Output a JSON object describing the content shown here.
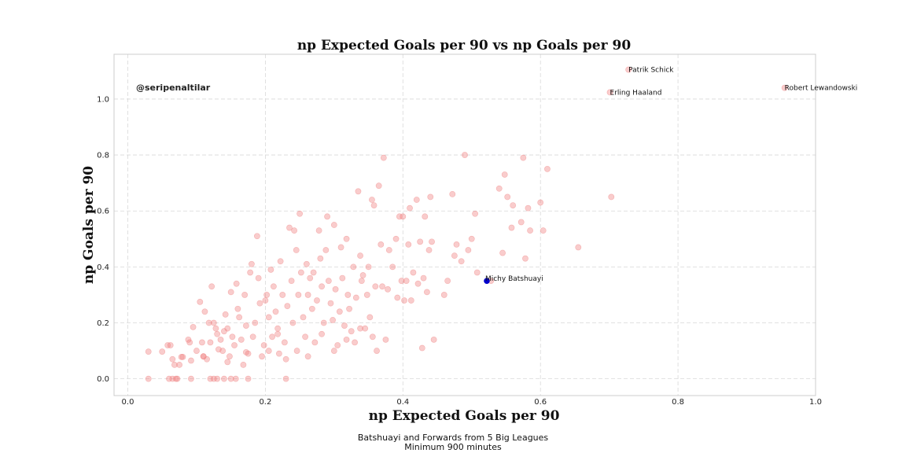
{
  "chart_data": {
    "type": "scatter",
    "title": "np Expected Goals per 90 vs np Goals per 90",
    "xlabel": "np Expected Goals per 90",
    "ylabel": "np Goals per 90",
    "xlim": [
      -0.02,
      1.0
    ],
    "ylim": [
      -0.06,
      1.16
    ],
    "xticks": [
      "0.0",
      "0.2",
      "0.4",
      "0.6",
      "0.8",
      "1.0"
    ],
    "yticks": [
      "0.0",
      "0.2",
      "0.4",
      "0.6",
      "0.8",
      "1.0"
    ],
    "grid": true,
    "watermark": "@seripenaltilar",
    "footer_lines": [
      "Batshuayi and Forwards from 5 Big Leagues",
      "Minimum 900 minutes"
    ],
    "colors": {
      "points": "#f08080",
      "highlight": "#0000cc"
    },
    "highlight": {
      "name": "Michy Batshuayi",
      "x": 0.522,
      "y": 0.35
    },
    "annotations": [
      {
        "name": "Patrik Schick",
        "x": 0.728,
        "y": 1.105
      },
      {
        "name": "Erling Haaland",
        "x": 0.701,
        "y": 1.024
      },
      {
        "name": "Robert Lewandowski",
        "x": 0.955,
        "y": 1.04
      }
    ],
    "points": [
      [
        0.03,
        0.0
      ],
      [
        0.06,
        0.0
      ],
      [
        0.065,
        0.0
      ],
      [
        0.07,
        0.0
      ],
      [
        0.072,
        0.0
      ],
      [
        0.092,
        0.0
      ],
      [
        0.12,
        0.0
      ],
      [
        0.125,
        0.0
      ],
      [
        0.13,
        0.0
      ],
      [
        0.14,
        0.0
      ],
      [
        0.15,
        0.0
      ],
      [
        0.157,
        0.0
      ],
      [
        0.175,
        0.0
      ],
      [
        0.23,
        0.0
      ],
      [
        0.03,
        0.097
      ],
      [
        0.05,
        0.097
      ],
      [
        0.058,
        0.12
      ],
      [
        0.062,
        0.12
      ],
      [
        0.065,
        0.07
      ],
      [
        0.068,
        0.05
      ],
      [
        0.075,
        0.05
      ],
      [
        0.078,
        0.078
      ],
      [
        0.08,
        0.078
      ],
      [
        0.088,
        0.14
      ],
      [
        0.09,
        0.13
      ],
      [
        0.092,
        0.065
      ],
      [
        0.095,
        0.185
      ],
      [
        0.1,
        0.1
      ],
      [
        0.105,
        0.275
      ],
      [
        0.108,
        0.13
      ],
      [
        0.11,
        0.08
      ],
      [
        0.112,
        0.24
      ],
      [
        0.115,
        0.07
      ],
      [
        0.118,
        0.2
      ],
      [
        0.12,
        0.13
      ],
      [
        0.122,
        0.33
      ],
      [
        0.125,
        0.2
      ],
      [
        0.128,
        0.18
      ],
      [
        0.13,
        0.16
      ],
      [
        0.132,
        0.105
      ],
      [
        0.135,
        0.14
      ],
      [
        0.138,
        0.1
      ],
      [
        0.14,
        0.17
      ],
      [
        0.142,
        0.23
      ],
      [
        0.145,
        0.18
      ],
      [
        0.148,
        0.08
      ],
      [
        0.15,
        0.31
      ],
      [
        0.152,
        0.15
      ],
      [
        0.155,
        0.12
      ],
      [
        0.158,
        0.34
      ],
      [
        0.16,
        0.25
      ],
      [
        0.162,
        0.22
      ],
      [
        0.165,
        0.14
      ],
      [
        0.168,
        0.05
      ],
      [
        0.17,
        0.3
      ],
      [
        0.172,
        0.19
      ],
      [
        0.175,
        0.09
      ],
      [
        0.178,
        0.38
      ],
      [
        0.18,
        0.41
      ],
      [
        0.182,
        0.15
      ],
      [
        0.185,
        0.2
      ],
      [
        0.188,
        0.51
      ],
      [
        0.19,
        0.36
      ],
      [
        0.192,
        0.27
      ],
      [
        0.195,
        0.08
      ],
      [
        0.198,
        0.12
      ],
      [
        0.2,
        0.28
      ],
      [
        0.202,
        0.3
      ],
      [
        0.205,
        0.22
      ],
      [
        0.208,
        0.39
      ],
      [
        0.21,
        0.15
      ],
      [
        0.212,
        0.33
      ],
      [
        0.215,
        0.24
      ],
      [
        0.218,
        0.18
      ],
      [
        0.22,
        0.09
      ],
      [
        0.222,
        0.42
      ],
      [
        0.225,
        0.3
      ],
      [
        0.228,
        0.13
      ],
      [
        0.23,
        0.07
      ],
      [
        0.232,
        0.26
      ],
      [
        0.235,
        0.54
      ],
      [
        0.238,
        0.35
      ],
      [
        0.24,
        0.2
      ],
      [
        0.242,
        0.53
      ],
      [
        0.245,
        0.46
      ],
      [
        0.248,
        0.3
      ],
      [
        0.25,
        0.59
      ],
      [
        0.252,
        0.38
      ],
      [
        0.255,
        0.22
      ],
      [
        0.258,
        0.15
      ],
      [
        0.26,
        0.41
      ],
      [
        0.262,
        0.3
      ],
      [
        0.265,
        0.36
      ],
      [
        0.268,
        0.25
      ],
      [
        0.27,
        0.38
      ],
      [
        0.272,
        0.13
      ],
      [
        0.275,
        0.28
      ],
      [
        0.278,
        0.53
      ],
      [
        0.28,
        0.43
      ],
      [
        0.282,
        0.33
      ],
      [
        0.285,
        0.2
      ],
      [
        0.288,
        0.46
      ],
      [
        0.29,
        0.58
      ],
      [
        0.292,
        0.35
      ],
      [
        0.295,
        0.27
      ],
      [
        0.298,
        0.21
      ],
      [
        0.3,
        0.55
      ],
      [
        0.302,
        0.32
      ],
      [
        0.305,
        0.12
      ],
      [
        0.308,
        0.24
      ],
      [
        0.31,
        0.47
      ],
      [
        0.312,
        0.36
      ],
      [
        0.315,
        0.19
      ],
      [
        0.318,
        0.5
      ],
      [
        0.32,
        0.3
      ],
      [
        0.322,
        0.25
      ],
      [
        0.325,
        0.17
      ],
      [
        0.328,
        0.4
      ],
      [
        0.33,
        0.13
      ],
      [
        0.332,
        0.29
      ],
      [
        0.335,
        0.67
      ],
      [
        0.338,
        0.44
      ],
      [
        0.34,
        0.35
      ],
      [
        0.342,
        0.37
      ],
      [
        0.345,
        0.18
      ],
      [
        0.348,
        0.3
      ],
      [
        0.35,
        0.4
      ],
      [
        0.352,
        0.22
      ],
      [
        0.355,
        0.64
      ],
      [
        0.358,
        0.62
      ],
      [
        0.36,
        0.33
      ],
      [
        0.362,
        0.1
      ],
      [
        0.365,
        0.69
      ],
      [
        0.368,
        0.48
      ],
      [
        0.37,
        0.33
      ],
      [
        0.372,
        0.79
      ],
      [
        0.375,
        0.14
      ],
      [
        0.378,
        0.32
      ],
      [
        0.38,
        0.46
      ],
      [
        0.385,
        0.4
      ],
      [
        0.39,
        0.5
      ],
      [
        0.392,
        0.29
      ],
      [
        0.395,
        0.58
      ],
      [
        0.398,
        0.35
      ],
      [
        0.4,
        0.58
      ],
      [
        0.402,
        0.28
      ],
      [
        0.405,
        0.35
      ],
      [
        0.408,
        0.48
      ],
      [
        0.41,
        0.61
      ],
      [
        0.412,
        0.28
      ],
      [
        0.415,
        0.38
      ],
      [
        0.42,
        0.64
      ],
      [
        0.422,
        0.34
      ],
      [
        0.425,
        0.49
      ],
      [
        0.428,
        0.11
      ],
      [
        0.43,
        0.36
      ],
      [
        0.432,
        0.58
      ],
      [
        0.435,
        0.31
      ],
      [
        0.438,
        0.46
      ],
      [
        0.44,
        0.65
      ],
      [
        0.442,
        0.49
      ],
      [
        0.445,
        0.14
      ],
      [
        0.46,
        0.3
      ],
      [
        0.465,
        0.35
      ],
      [
        0.472,
        0.66
      ],
      [
        0.475,
        0.44
      ],
      [
        0.478,
        0.48
      ],
      [
        0.485,
        0.42
      ],
      [
        0.49,
        0.8
      ],
      [
        0.495,
        0.46
      ],
      [
        0.5,
        0.5
      ],
      [
        0.505,
        0.59
      ],
      [
        0.508,
        0.38
      ],
      [
        0.528,
        0.35
      ],
      [
        0.54,
        0.68
      ],
      [
        0.545,
        0.45
      ],
      [
        0.548,
        0.73
      ],
      [
        0.552,
        0.65
      ],
      [
        0.558,
        0.54
      ],
      [
        0.56,
        0.62
      ],
      [
        0.572,
        0.56
      ],
      [
        0.575,
        0.79
      ],
      [
        0.578,
        0.43
      ],
      [
        0.582,
        0.61
      ],
      [
        0.585,
        0.53
      ],
      [
        0.6,
        0.63
      ],
      [
        0.604,
        0.53
      ],
      [
        0.61,
        0.75
      ],
      [
        0.655,
        0.47
      ],
      [
        0.703,
        0.65
      ],
      [
        0.11,
        0.08
      ],
      [
        0.145,
        0.06
      ],
      [
        0.172,
        0.095
      ],
      [
        0.205,
        0.1
      ],
      [
        0.218,
        0.16
      ],
      [
        0.246,
        0.1
      ],
      [
        0.262,
        0.08
      ],
      [
        0.282,
        0.16
      ],
      [
        0.3,
        0.1
      ],
      [
        0.318,
        0.14
      ],
      [
        0.338,
        0.18
      ],
      [
        0.356,
        0.15
      ]
    ]
  }
}
